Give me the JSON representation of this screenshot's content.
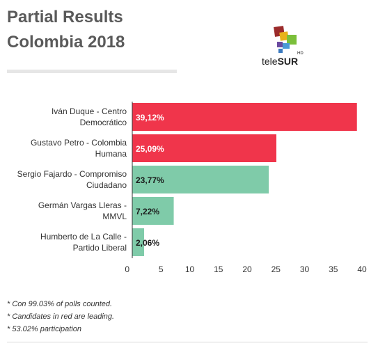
{
  "header": {
    "title_line1": "Partial Results",
    "title_line2": "Colombia 2018"
  },
  "logo": {
    "name": "teleSUR HD logo",
    "word_part1": "tele",
    "word_part2": "SUR",
    "badge": "HD"
  },
  "chart_data": {
    "type": "bar",
    "orientation": "horizontal",
    "title": "Partial Results Colombia 2018",
    "categories": [
      [
        "Iván Duque - Centro",
        "Democrático"
      ],
      [
        "Gustavo Petro - Colombia",
        "Humana"
      ],
      [
        "Sergio Fajardo - Compromiso",
        "Ciudadano"
      ],
      [
        "Germán Vargas Lleras -",
        "MMVL"
      ],
      [
        "Humberto de La Calle -",
        "Partido Liberal"
      ]
    ],
    "values": [
      39.12,
      25.09,
      23.77,
      7.22,
      2.06
    ],
    "data_labels": [
      "39,12%",
      "25,09%",
      "23,77%",
      "7,22%",
      "2,06%"
    ],
    "colors": [
      "#f0354b",
      "#f0354b",
      "#7fcba9",
      "#7fcba9",
      "#7fcba9"
    ],
    "label_colors": [
      "#ffffff",
      "#ffffff",
      "#1a1a1a",
      "#1a1a1a",
      "#1a1a1a"
    ],
    "xlim": [
      0,
      40
    ],
    "xticks": [
      "0",
      "5",
      "10",
      "15",
      "20",
      "25",
      "30",
      "35",
      "40"
    ],
    "grid": false
  },
  "notes": [
    "* Con 99.03% of polls counted.",
    "* Candidates in red are leading.",
    "* 53.02% participation"
  ]
}
